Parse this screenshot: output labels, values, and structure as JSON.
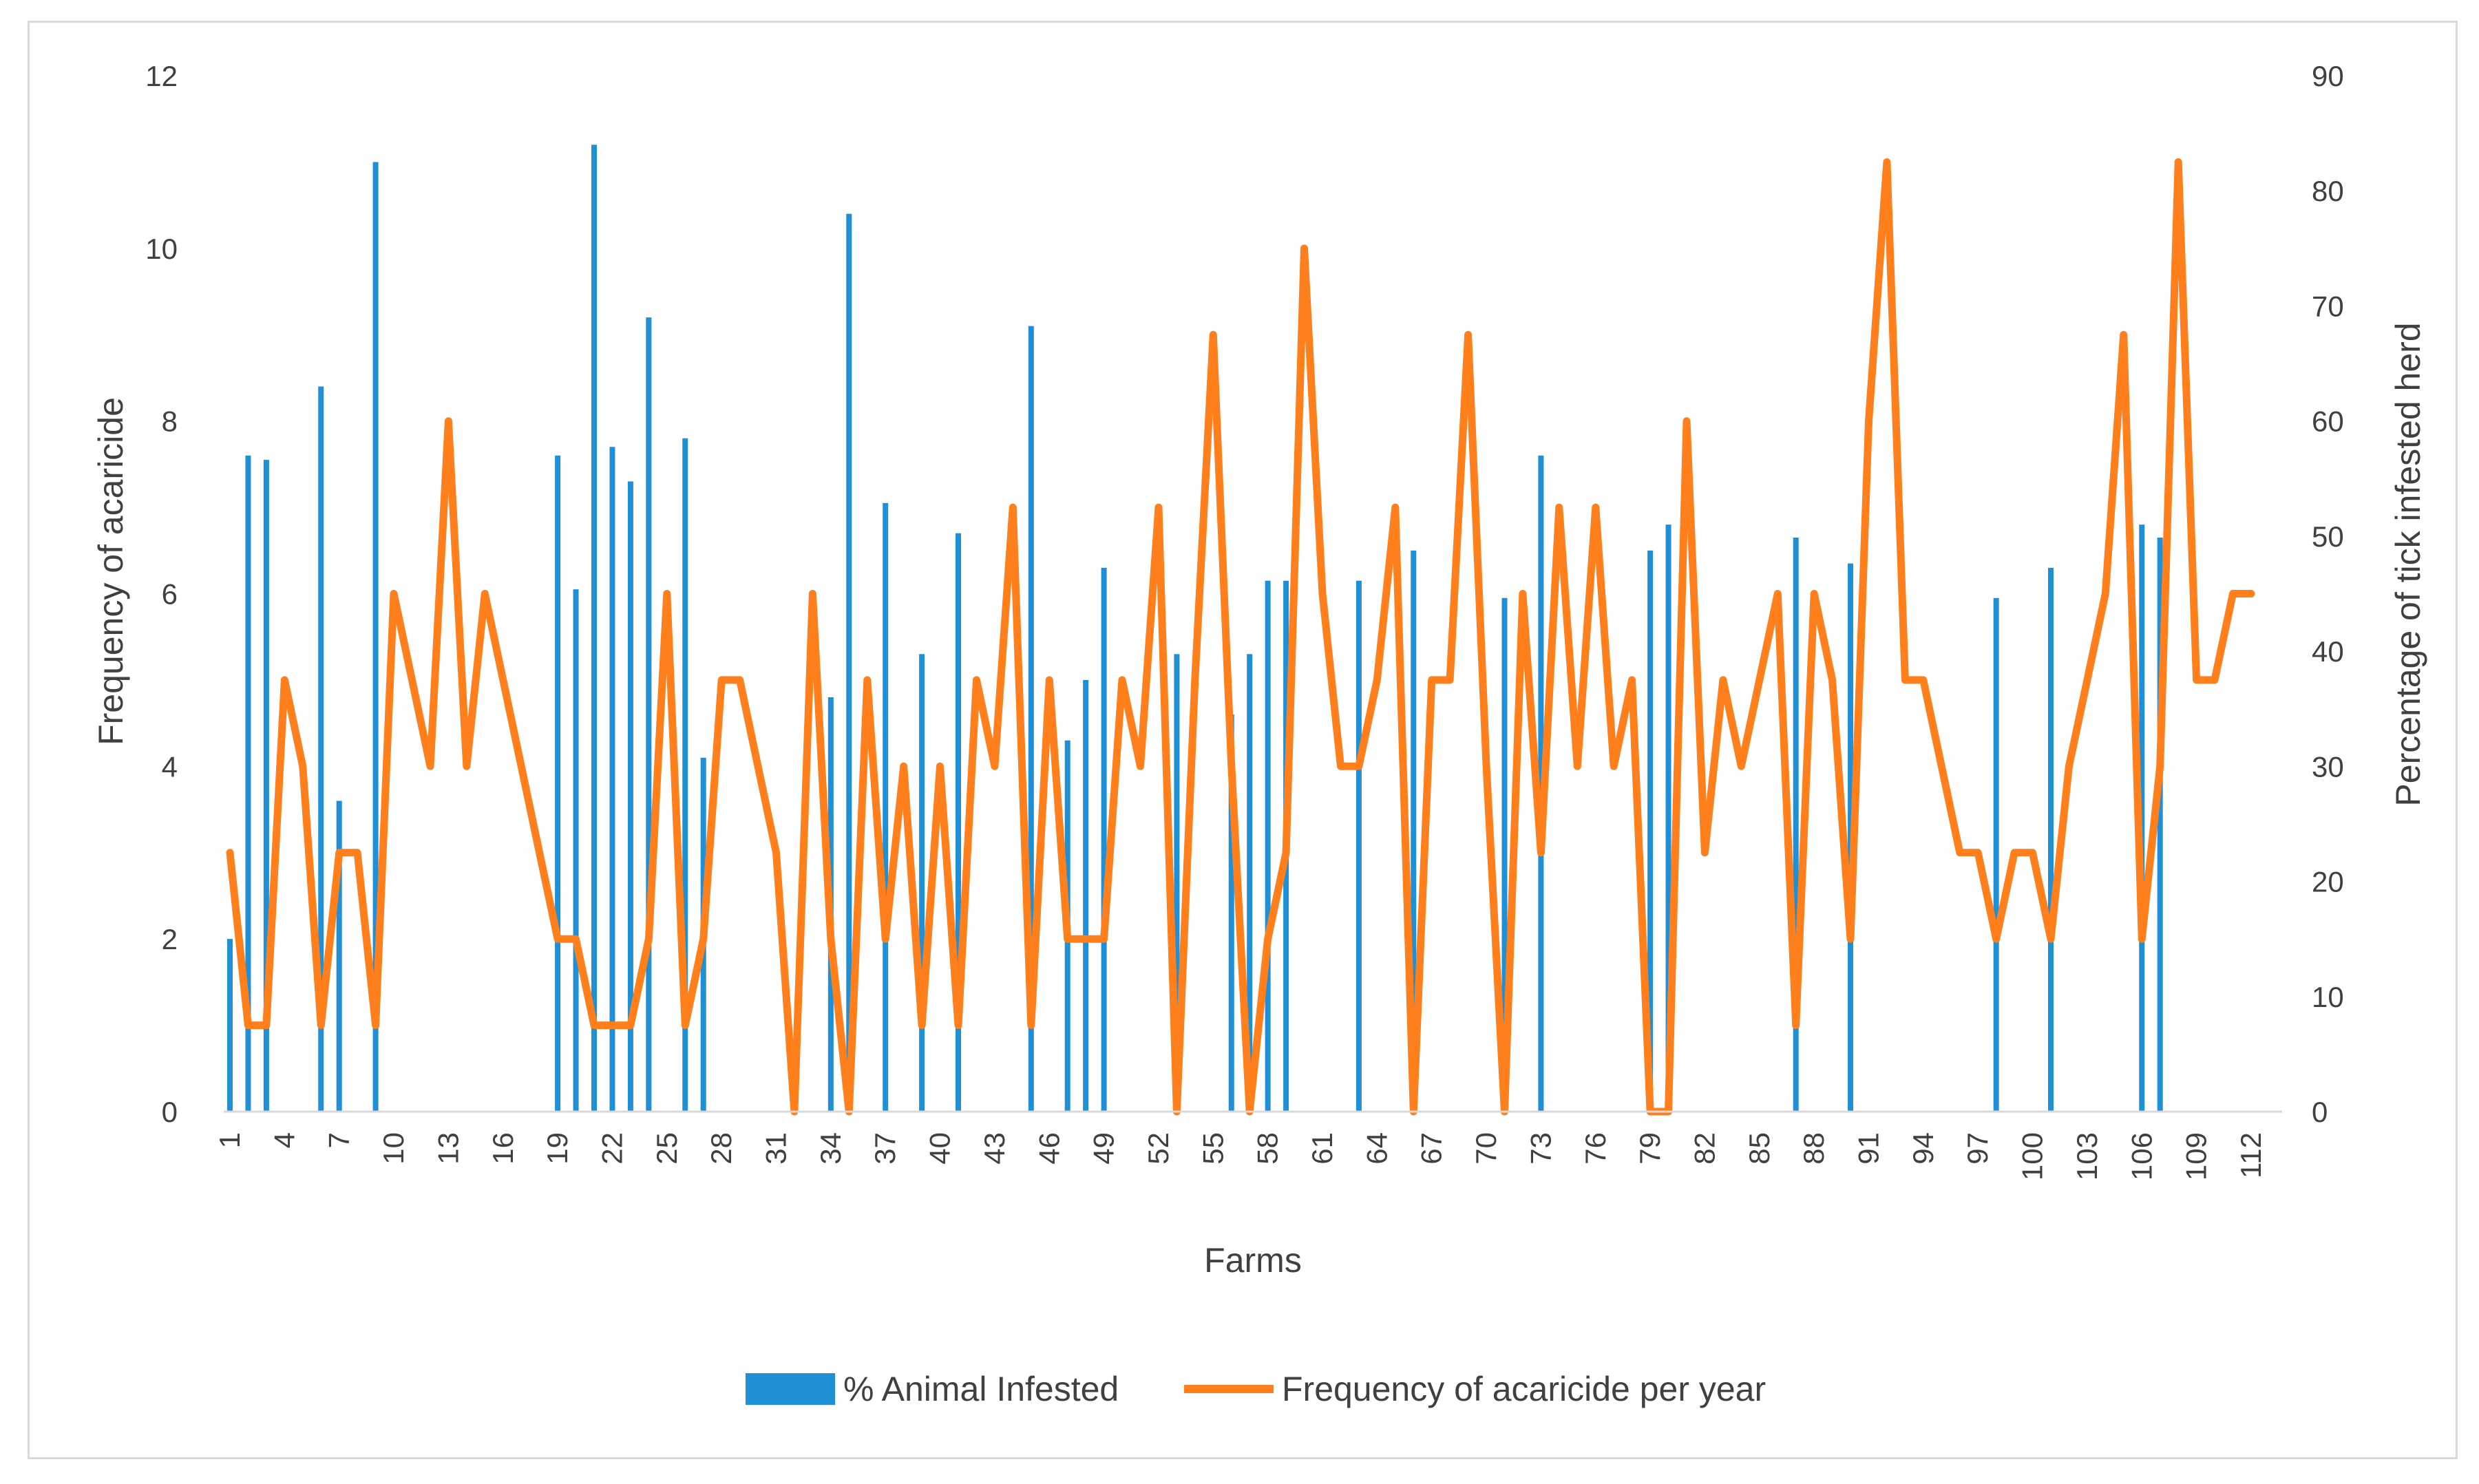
{
  "chart_data": {
    "type": "bar+line",
    "title": "",
    "xlabel": "Farms",
    "ylabel_left": "Frequency of acaricide",
    "ylabel_right": "Percentage of tick infested  herd",
    "ylim_left": [
      0,
      12
    ],
    "yticks_left": [
      0,
      2,
      4,
      6,
      8,
      10,
      12
    ],
    "ylim_right": [
      0,
      90
    ],
    "yticks_right": [
      0,
      10,
      20,
      30,
      40,
      50,
      60,
      70,
      80,
      90
    ],
    "x": [
      1,
      2,
      3,
      4,
      5,
      6,
      7,
      8,
      9,
      10,
      11,
      12,
      13,
      14,
      15,
      16,
      17,
      18,
      19,
      20,
      21,
      22,
      23,
      24,
      25,
      26,
      27,
      28,
      29,
      30,
      31,
      32,
      33,
      34,
      35,
      36,
      37,
      38,
      39,
      40,
      41,
      42,
      43,
      44,
      45,
      46,
      47,
      48,
      49,
      50,
      51,
      52,
      53,
      54,
      55,
      56,
      57,
      58,
      59,
      60,
      61,
      62,
      63,
      64,
      65,
      66,
      67,
      68,
      69,
      70,
      71,
      72,
      73,
      74,
      75,
      76,
      77,
      78,
      79,
      80,
      81,
      82,
      83,
      84,
      85,
      86,
      87,
      88,
      89,
      90,
      91,
      92,
      93,
      94,
      95,
      96,
      97,
      98,
      99,
      100,
      101,
      102,
      103,
      104,
      105,
      106,
      107,
      108,
      109,
      110,
      111,
      112
    ],
    "xtick_labels": [
      "1",
      "4",
      "7",
      "10",
      "13",
      "16",
      "19",
      "22",
      "25",
      "28",
      "31",
      "34",
      "37",
      "40",
      "43",
      "46",
      "49",
      "52",
      "55",
      "58",
      "61",
      "64",
      "67",
      "70",
      "73",
      "76",
      "79",
      "82",
      "85",
      "88",
      "91",
      "94",
      "97",
      "100",
      "103",
      "106",
      "109",
      "112"
    ],
    "series": [
      {
        "name": "% Animal Infested",
        "type": "bar",
        "axis": "left",
        "color": "#1f8fd6",
        "values": [
          2.0,
          7.6,
          7.55,
          0,
          0,
          8.4,
          3.6,
          0,
          11.0,
          0,
          0,
          0,
          0,
          0,
          0,
          0,
          0,
          0,
          7.6,
          6.05,
          11.2,
          7.7,
          7.3,
          9.2,
          0,
          7.8,
          4.1,
          0,
          0,
          0,
          0,
          0,
          0,
          4.8,
          10.4,
          0,
          7.05,
          0,
          5.3,
          0,
          6.7,
          0,
          0,
          0,
          9.1,
          0,
          4.3,
          5.0,
          6.3,
          0,
          0,
          0,
          5.3,
          0,
          0,
          4.6,
          5.3,
          6.15,
          6.15,
          0,
          0,
          0,
          6.15,
          0,
          0,
          6.5,
          0,
          0,
          0,
          0,
          5.95,
          0,
          7.6,
          0,
          0,
          0,
          0,
          0,
          6.5,
          6.8,
          0,
          0,
          0,
          0,
          0,
          0,
          6.65,
          0,
          0,
          6.35,
          0,
          0,
          0,
          0,
          0,
          0,
          0,
          5.95,
          0,
          0,
          6.3,
          0,
          0,
          0,
          0,
          6.8,
          6.65,
          0,
          0,
          0,
          0,
          0
        ]
      },
      {
        "name": "Frequency of acaricide per year",
        "type": "line",
        "axis": "right",
        "color": "#ff7f1c",
        "values": [
          22.5,
          7.5,
          7.5,
          37.5,
          30,
          7.5,
          22.5,
          22.5,
          7.5,
          45,
          37.5,
          30,
          60,
          30,
          45,
          37.5,
          30,
          22.5,
          15,
          15,
          7.5,
          7.5,
          7.5,
          15,
          45,
          7.5,
          15,
          37.5,
          37.5,
          30,
          22.5,
          0,
          45,
          15,
          0,
          37.5,
          15,
          30,
          7.5,
          30,
          7.5,
          37.5,
          30,
          52.5,
          7.5,
          37.5,
          15,
          15,
          15,
          37.5,
          30,
          52.5,
          0,
          37.5,
          67.5,
          30,
          0,
          15,
          22.5,
          75,
          45,
          30,
          30,
          37.5,
          52.5,
          0,
          37.5,
          37.5,
          67.5,
          30,
          0,
          45,
          22.5,
          52.5,
          30,
          52.5,
          30,
          37.5,
          0,
          0,
          60,
          22.5,
          37.5,
          30,
          37.5,
          45,
          7.5,
          45,
          37.5,
          15,
          60,
          82.5,
          37.5,
          37.5,
          30,
          22.5,
          22.5,
          15,
          22.5,
          22.5,
          15,
          30,
          37.5,
          45,
          67.5,
          15,
          30,
          82.5,
          37.5,
          37.5,
          45,
          45
        ]
      }
    ],
    "legend_position": "bottom"
  }
}
